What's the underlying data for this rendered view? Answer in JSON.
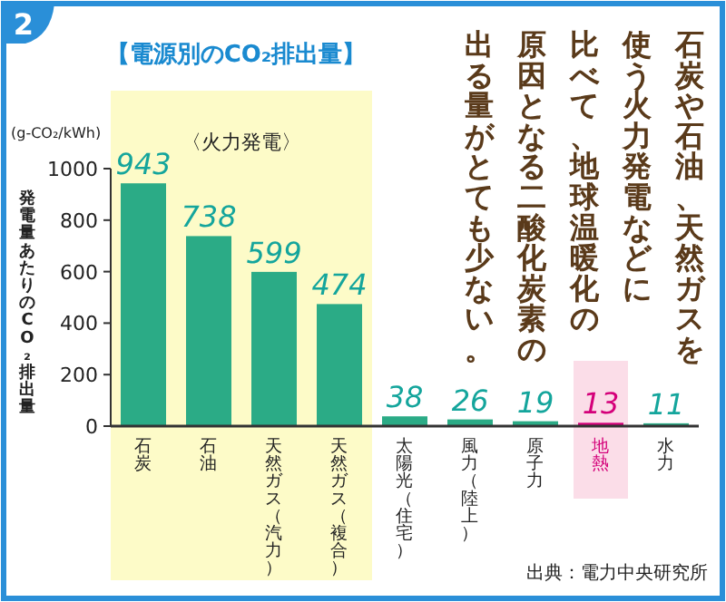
{
  "chart_data": {
    "type": "bar",
    "title": "【電源別のCO₂排出量】",
    "ylabel": "発電量あたりのCO₂排出量",
    "categories": [
      "石炭",
      "石油",
      "天然ガス（汽力）",
      "天然ガス（複合）",
      "太陽光（住宅）",
      "風力（陸上）",
      "原子力",
      "地熱",
      "水力"
    ],
    "values": [
      943,
      738,
      599,
      474,
      38,
      26,
      19,
      13,
      11
    ],
    "colors": [
      "#2bab86",
      "#2bab86",
      "#2bab86",
      "#2bab86",
      "#2bab86",
      "#2bab86",
      "#2bab86",
      "#d4007a",
      "#2bab86"
    ],
    "data_labels": true,
    "ylim": [
      0,
      1000
    ],
    "yticks": [
      0,
      200,
      400,
      600,
      800,
      1000
    ],
    "grid": false,
    "bands": [
      {
        "axis": "x",
        "from": "石炭",
        "to": "天然ガス（複合）",
        "label": "〈火力発電〉",
        "color": "#fdfbc8"
      },
      {
        "axis": "x",
        "from": "地熱",
        "to": "地熱",
        "color": "#fbdde8"
      }
    ],
    "annotations": [
      "2",
      "(g-CO₂/kWh)",
      "石炭や石油、天然ガスを",
      "使う火力発電などに",
      "比べて、地球温暖化の",
      "原因となる二酸化炭素の",
      "出る量がとても少ない。",
      "出典：電力中央研究所"
    ]
  }
}
